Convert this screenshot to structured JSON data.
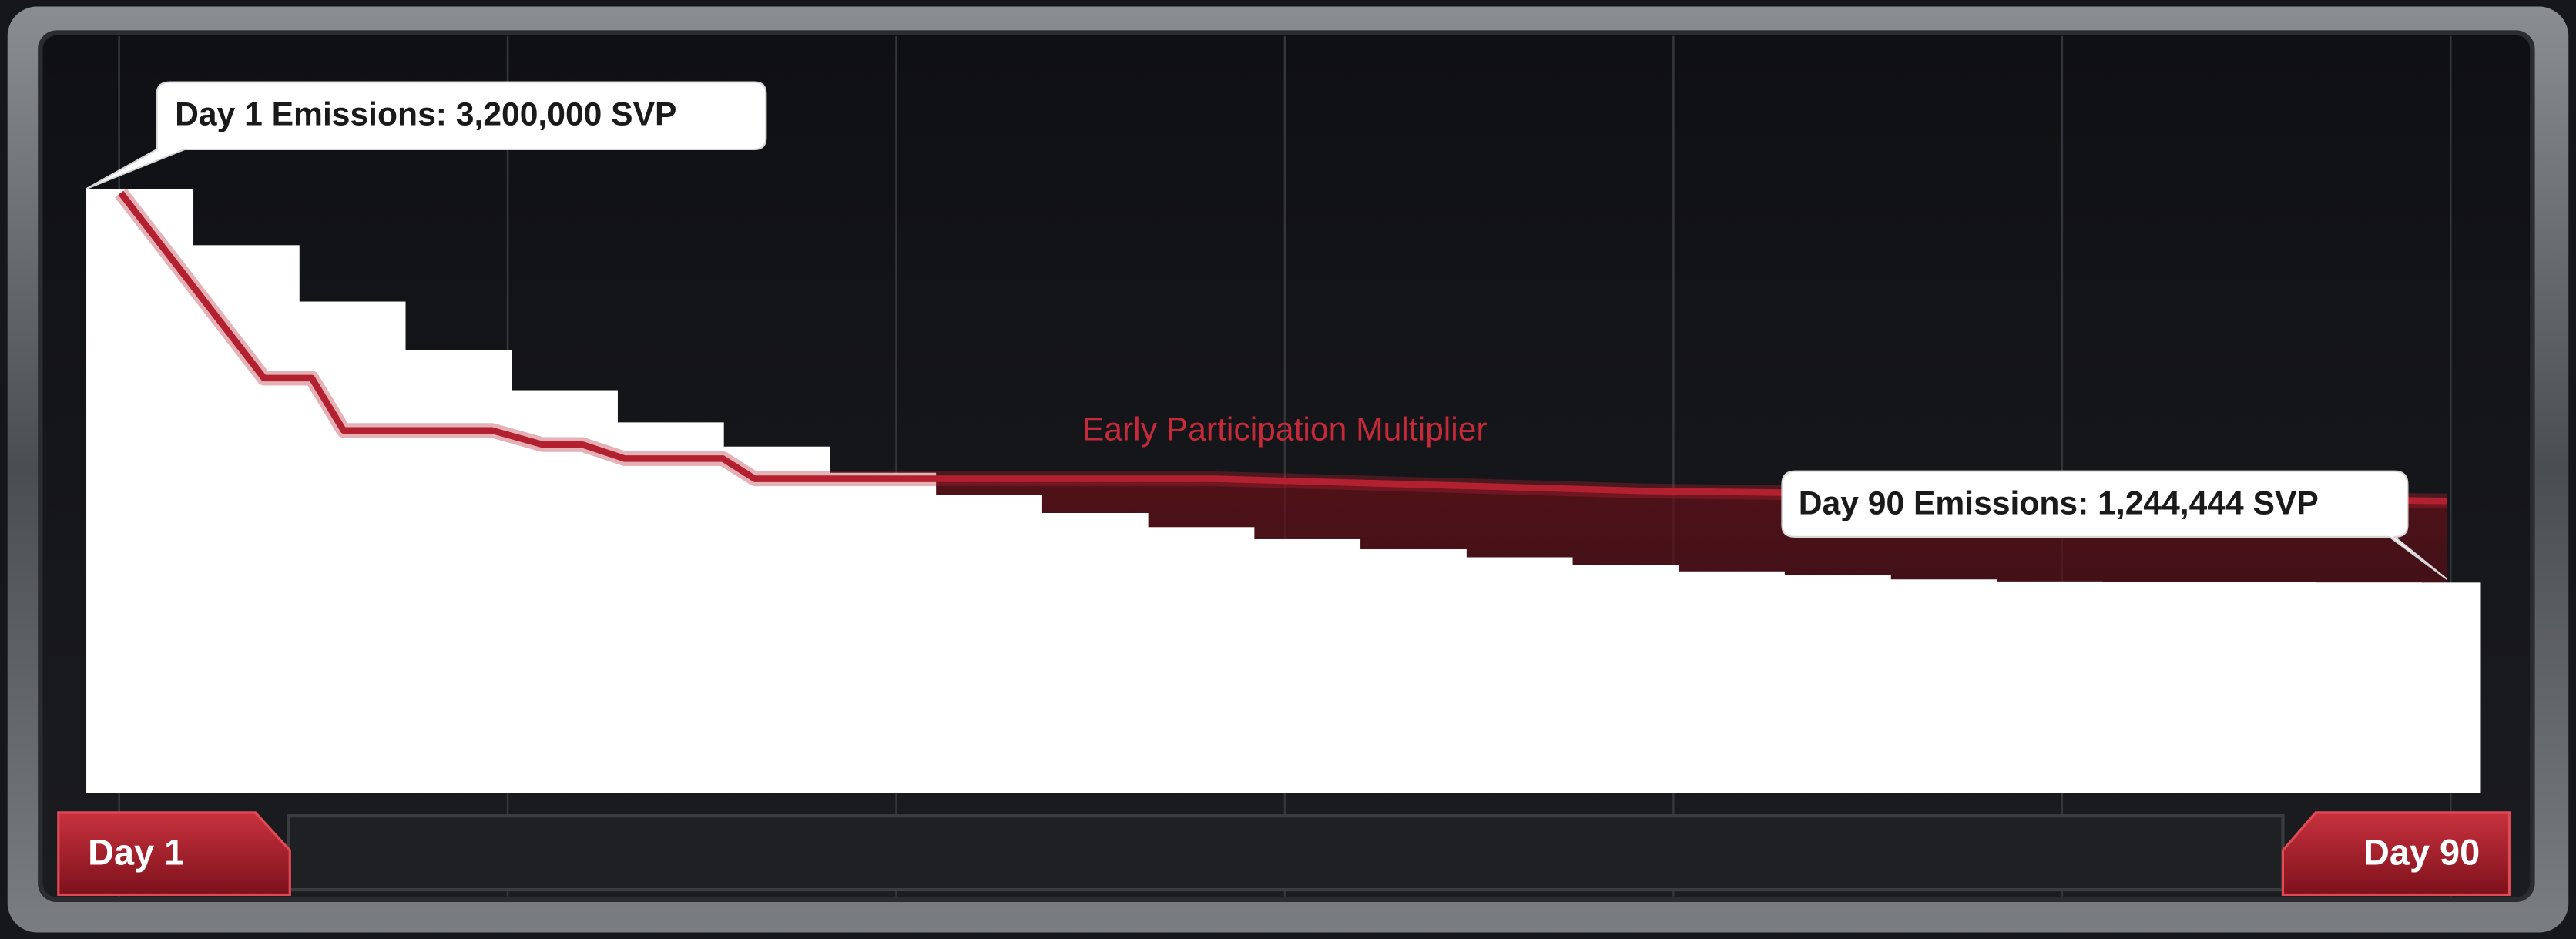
{
  "chart_data": {
    "type": "step-area",
    "x": [
      1,
      5,
      9,
      13,
      17,
      21,
      25,
      29,
      33,
      37,
      41,
      45,
      49,
      53,
      57,
      61,
      65,
      69,
      73,
      77,
      81,
      85,
      89
    ],
    "values": [
      3200000,
      2920000,
      2640000,
      2400000,
      2200000,
      2040000,
      1920000,
      1790000,
      1680000,
      1590000,
      1520000,
      1460000,
      1410000,
      1370000,
      1330000,
      1300000,
      1280000,
      1260000,
      1250000,
      1248000,
      1246000,
      1245000,
      1244444
    ],
    "color": "#ffffff",
    "xlim": [
      1,
      90
    ],
    "ylim": [
      200000,
      3400000
    ],
    "xticks": [
      {
        "value": 1,
        "label": "Day 1"
      },
      {
        "value": 90,
        "label": "Day 90"
      }
    ],
    "line": {
      "name": "Early Participation Multiplier",
      "color": "#b3202f",
      "x": [
        2.3,
        7.7,
        9.5,
        10.7,
        16.3,
        18.2,
        19.7,
        21.3,
        25,
        26.2,
        34.3,
        43.6,
        59.7,
        90
      ],
      "values": [
        3180000,
        2260000,
        2260000,
        2000000,
        2000000,
        1930000,
        1930000,
        1860000,
        1860000,
        1760000,
        1760000,
        1760000,
        1700000,
        1650000
      ]
    },
    "annotations": [
      {
        "text": "Day 1 Emissions: 3,200,000 SVP"
      },
      {
        "text": "Day 90 Emissions: 1,244,444 SVP"
      }
    ]
  }
}
